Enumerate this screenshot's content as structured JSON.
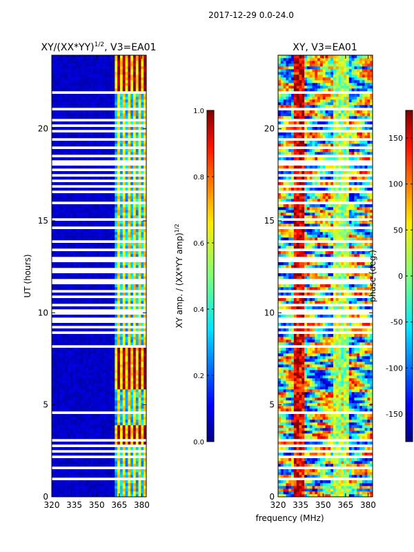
{
  "figure": {
    "suptitle": "2017-12-29 0.0-24.0",
    "xlabel": "frequency (MHz)",
    "ylabel": "UT (hours)"
  },
  "chart_data": [
    {
      "type": "heatmap",
      "title_base": "XY/(XX*YY)",
      "title_exponent": "1/2",
      "title_suffix": ", V3=EA01",
      "x_range_mhz": [
        320,
        383
      ],
      "x_ticks": [
        320,
        335,
        350,
        365,
        380
      ],
      "y_range_hours": [
        0,
        24
      ],
      "y_ticks": [
        0,
        5,
        10,
        15,
        20
      ],
      "colormap": "jet",
      "colorbar": {
        "label_base": "XY amp. / (XX*YY amp)",
        "label_exponent": "1/2",
        "range": [
          0.0,
          1.0
        ],
        "ticks": [
          "0.0",
          "0.2",
          "0.4",
          "0.6",
          "0.8",
          "1.0"
        ],
        "tick_values": [
          0.0,
          0.2,
          0.4,
          0.6,
          0.8,
          1.0
        ]
      },
      "description_level": "low amplitude (~0.05) below 362 MHz, moderate-to-high (0.3-0.9) between 362 and 382 MHz"
    },
    {
      "type": "heatmap",
      "title": "XY, V3=EA01",
      "x_range_mhz": [
        320,
        383
      ],
      "x_ticks": [
        320,
        335,
        350,
        365,
        380
      ],
      "y_range_hours": [
        0,
        24
      ],
      "y_ticks": [
        0,
        5,
        10,
        15,
        20
      ],
      "colormap": "jet",
      "colorbar": {
        "label": "phase (deg.)",
        "range": [
          -180,
          180
        ],
        "ticks": [
          "-150",
          "-100",
          "-50",
          "0",
          "50",
          "100",
          "150"
        ],
        "tick_values": [
          -150,
          -100,
          -50,
          0,
          50,
          100,
          150
        ]
      }
    }
  ],
  "flagged_gaps_hours": [
    [
      0.95,
      1.05
    ],
    [
      1.3,
      1.38
    ],
    [
      1.55,
      1.62
    ],
    [
      1.75,
      1.82
    ],
    [
      2.15,
      2.22
    ],
    [
      2.4,
      2.5
    ],
    [
      2.75,
      2.82
    ],
    [
      3.0,
      3.08
    ],
    [
      3.28,
      3.35
    ],
    [
      3.7,
      3.78
    ],
    [
      4.05,
      4.12
    ],
    [
      4.55,
      4.6
    ],
    [
      5.5,
      5.55
    ],
    [
      6.55,
      6.6
    ],
    [
      7.0,
      7.05
    ],
    [
      8.1,
      8.3
    ],
    [
      8.5,
      8.62
    ],
    [
      8.9,
      9.05
    ],
    [
      9.15,
      9.3
    ],
    [
      9.4,
      9.55
    ],
    [
      9.6,
      9.75
    ],
    [
      9.85,
      9.98
    ],
    [
      10.1,
      10.22
    ],
    [
      10.35,
      10.48
    ],
    [
      10.6,
      10.72
    ],
    [
      10.85,
      10.98
    ],
    [
      11.1,
      11.22
    ],
    [
      11.55,
      11.65
    ],
    [
      11.75,
      11.85
    ],
    [
      11.95,
      12.05
    ],
    [
      12.15,
      12.25
    ],
    [
      12.35,
      12.45
    ],
    [
      12.55,
      12.65
    ],
    [
      12.75,
      12.85
    ],
    [
      12.95,
      13.05
    ],
    [
      13.15,
      13.25
    ],
    [
      13.35,
      13.45
    ],
    [
      13.6,
      13.68
    ],
    [
      13.85,
      13.92
    ],
    [
      14.2,
      14.28
    ],
    [
      14.6,
      14.68
    ],
    [
      15.0,
      15.08
    ],
    [
      15.55,
      15.62
    ],
    [
      15.95,
      16.05
    ],
    [
      16.3,
      16.38
    ],
    [
      16.55,
      16.65
    ],
    [
      16.8,
      16.88
    ],
    [
      17.1,
      17.18
    ],
    [
      17.45,
      17.55
    ],
    [
      17.7,
      17.78
    ],
    [
      18.0,
      18.08
    ],
    [
      18.2,
      18.28
    ],
    [
      18.45,
      18.55
    ],
    [
      18.7,
      18.78
    ],
    [
      18.95,
      19.02
    ],
    [
      19.4,
      19.5
    ],
    [
      19.65,
      19.72
    ],
    [
      19.85,
      19.92
    ],
    [
      20.1,
      20.18
    ],
    [
      20.45,
      20.52
    ],
    [
      21.05,
      21.12
    ],
    [
      21.45,
      21.52
    ],
    [
      21.9,
      22.05
    ],
    [
      22.45,
      22.52
    ],
    [
      23.4,
      23.46
    ]
  ]
}
